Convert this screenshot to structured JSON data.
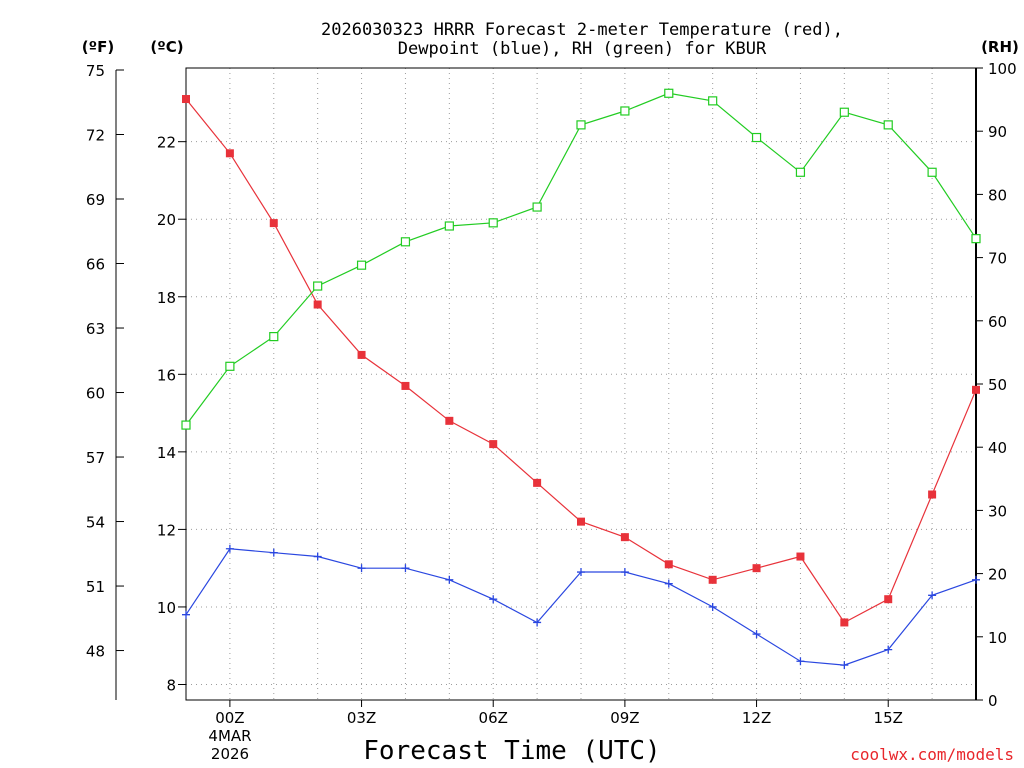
{
  "chart_data": {
    "type": "line",
    "title_lines": [
      "2026030323 HRRR Forecast 2-meter Temperature (red),",
      "Dewpoint (blue), RH (green) for KBUR"
    ],
    "unit_labels": {
      "fahrenheit": "(ºF)",
      "celsius": "(ºC)",
      "rh": "(RH)"
    },
    "xlabel": "Forecast Time (UTC)",
    "credit": "coolwx.com/models",
    "x_hours": [
      -1,
      0,
      1,
      2,
      3,
      4,
      5,
      6,
      7,
      8,
      9,
      10,
      11,
      12,
      13,
      14,
      15,
      16,
      17
    ],
    "x_range": [
      -1,
      17
    ],
    "x_ticks": [
      {
        "hour": 0,
        "label": "00Z"
      },
      {
        "hour": 3,
        "label": "03Z"
      },
      {
        "hour": 6,
        "label": "06Z"
      },
      {
        "hour": 9,
        "label": "09Z"
      },
      {
        "hour": 12,
        "label": "12Z"
      },
      {
        "hour": 15,
        "label": "15Z"
      }
    ],
    "x_date_lines": [
      "4MAR",
      "2026"
    ],
    "celsius_axis": {
      "range": [
        7.6,
        23.9
      ],
      "ticks": [
        8,
        10,
        12,
        14,
        16,
        18,
        20,
        22
      ]
    },
    "fahrenheit_axis": {
      "range": [
        45.7,
        75
      ],
      "ticks": [
        48,
        51,
        54,
        57,
        60,
        63,
        66,
        69,
        72,
        75
      ]
    },
    "rh_axis": {
      "range": [
        0,
        100
      ],
      "ticks": [
        0,
        10,
        20,
        30,
        40,
        50,
        60,
        70,
        80,
        90,
        100
      ]
    },
    "series": [
      {
        "name": "Temperature",
        "axis": "celsius",
        "color": "#e8323a",
        "marker": "filled-square",
        "values": [
          23.1,
          21.7,
          19.9,
          17.8,
          16.5,
          15.7,
          14.8,
          14.2,
          13.2,
          12.2,
          11.8,
          11.1,
          10.7,
          11.0,
          11.3,
          9.6,
          10.2,
          12.9,
          15.6
        ]
      },
      {
        "name": "Dewpoint",
        "axis": "celsius",
        "color": "#2a47e0",
        "marker": "plus",
        "values": [
          9.8,
          11.5,
          11.4,
          11.3,
          11.0,
          11.0,
          10.7,
          10.2,
          9.6,
          10.9,
          10.9,
          10.6,
          10.0,
          9.3,
          8.6,
          8.5,
          8.9,
          10.3,
          10.7
        ]
      },
      {
        "name": "RH",
        "axis": "rh",
        "color": "#22cc22",
        "marker": "open-square",
        "values": [
          43.5,
          52.8,
          57.5,
          65.5,
          68.8,
          72.5,
          75.0,
          75.5,
          78.0,
          91.0,
          93.2,
          96.0,
          94.8,
          89.0,
          83.5,
          93.0,
          91.0,
          83.5,
          73.0
        ]
      }
    ]
  }
}
